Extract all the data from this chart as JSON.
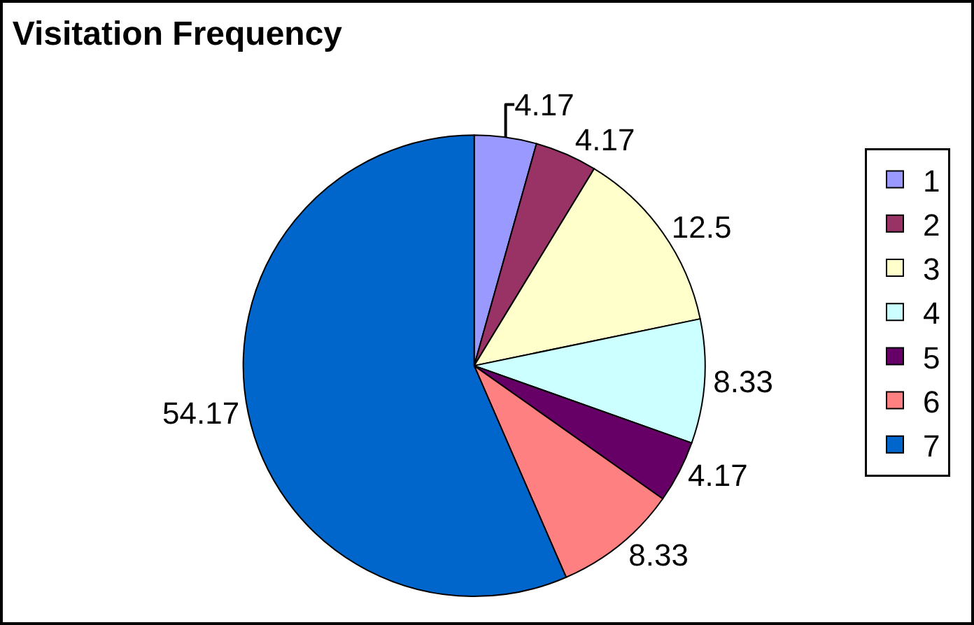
{
  "chart_data": {
    "type": "pie",
    "title": "Visitation Frequency",
    "categories": [
      "1",
      "2",
      "3",
      "4",
      "5",
      "6",
      "7"
    ],
    "values": [
      4.17,
      4.17,
      12.5,
      8.33,
      4.17,
      8.33,
      54.17
    ],
    "colors": [
      "#9999ff",
      "#993366",
      "#ffffcc",
      "#ccffff",
      "#660066",
      "#ff8080",
      "#0066cc"
    ],
    "data_labels": true,
    "legend": "right"
  }
}
